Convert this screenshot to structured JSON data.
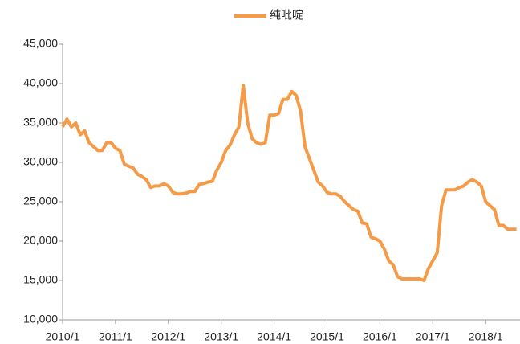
{
  "chart_data": {
    "type": "line",
    "x": [
      "2010/1",
      "2010/2",
      "2010/3",
      "2010/4",
      "2010/5",
      "2010/6",
      "2010/7",
      "2010/8",
      "2010/9",
      "2010/10",
      "2010/11",
      "2010/12",
      "2011/1",
      "2011/2",
      "2011/3",
      "2011/4",
      "2011/5",
      "2011/6",
      "2011/7",
      "2011/8",
      "2011/9",
      "2011/10",
      "2011/11",
      "2011/12",
      "2012/1",
      "2012/2",
      "2012/3",
      "2012/4",
      "2012/5",
      "2012/6",
      "2012/7",
      "2012/8",
      "2012/9",
      "2012/10",
      "2012/11",
      "2012/12",
      "2013/1",
      "2013/2",
      "2013/3",
      "2013/4",
      "2013/5",
      "2013/6",
      "2013/7",
      "2013/8",
      "2013/9",
      "2013/10",
      "2013/11",
      "2013/12",
      "2014/1",
      "2014/2",
      "2014/3",
      "2014/4",
      "2014/5",
      "2014/6",
      "2014/7",
      "2014/8",
      "2014/9",
      "2014/10",
      "2014/11",
      "2014/12",
      "2015/1",
      "2015/2",
      "2015/3",
      "2015/4",
      "2015/5",
      "2015/6",
      "2015/7",
      "2015/8",
      "2015/9",
      "2015/10",
      "2015/11",
      "2015/12",
      "2016/1",
      "2016/2",
      "2016/3",
      "2016/4",
      "2016/5",
      "2016/6",
      "2016/7",
      "2016/8",
      "2016/9",
      "2016/10",
      "2016/11",
      "2016/12",
      "2017/1",
      "2017/2",
      "2017/3",
      "2017/4",
      "2017/5",
      "2017/6",
      "2017/7",
      "2017/8",
      "2017/9",
      "2017/10",
      "2017/11",
      "2017/12",
      "2018/1",
      "2018/2",
      "2018/3",
      "2018/4",
      "2018/5",
      "2018/6",
      "2018/7",
      "2018/8"
    ],
    "series": [
      {
        "name": "纯吡啶",
        "color": "#f59a46",
        "values": [
          34500,
          35500,
          34500,
          35000,
          33500,
          34000,
          32500,
          32000,
          31500,
          31500,
          32500,
          32500,
          31800,
          31500,
          29800,
          29500,
          29300,
          28500,
          28200,
          27800,
          26800,
          27000,
          27000,
          27300,
          27000,
          26200,
          26000,
          26000,
          26100,
          26300,
          26300,
          27200,
          27300,
          27500,
          27600,
          29000,
          30000,
          31500,
          32200,
          33500,
          34500,
          39800,
          35000,
          33000,
          32500,
          32300,
          32500,
          36000,
          36000,
          36200,
          38000,
          38000,
          39000,
          38500,
          36500,
          32000,
          30500,
          29000,
          27500,
          27000,
          26200,
          26000,
          26000,
          25700,
          25000,
          24500,
          24000,
          23800,
          22300,
          22200,
          20500,
          20300,
          20000,
          19000,
          17500,
          17000,
          15500,
          15200,
          15200,
          15200,
          15200,
          15200,
          15000,
          16500,
          17500,
          18500,
          24500,
          26500,
          26500,
          26500,
          26800,
          27000,
          27500,
          27800,
          27500,
          27000,
          25000,
          24500,
          24000,
          22000,
          22000,
          21500,
          21500,
          21500
        ]
      }
    ],
    "ylim": [
      10000,
      45000
    ],
    "yticks": [
      {
        "value": 10000,
        "label": "10,000"
      },
      {
        "value": 15000,
        "label": "15,000"
      },
      {
        "value": 20000,
        "label": "20,000"
      },
      {
        "value": 25000,
        "label": "25,000"
      },
      {
        "value": 30000,
        "label": "30,000"
      },
      {
        "value": 35000,
        "label": "35,000"
      },
      {
        "value": 40000,
        "label": "40,000"
      },
      {
        "value": 45000,
        "label": "45,000"
      }
    ],
    "legend": "top"
  }
}
